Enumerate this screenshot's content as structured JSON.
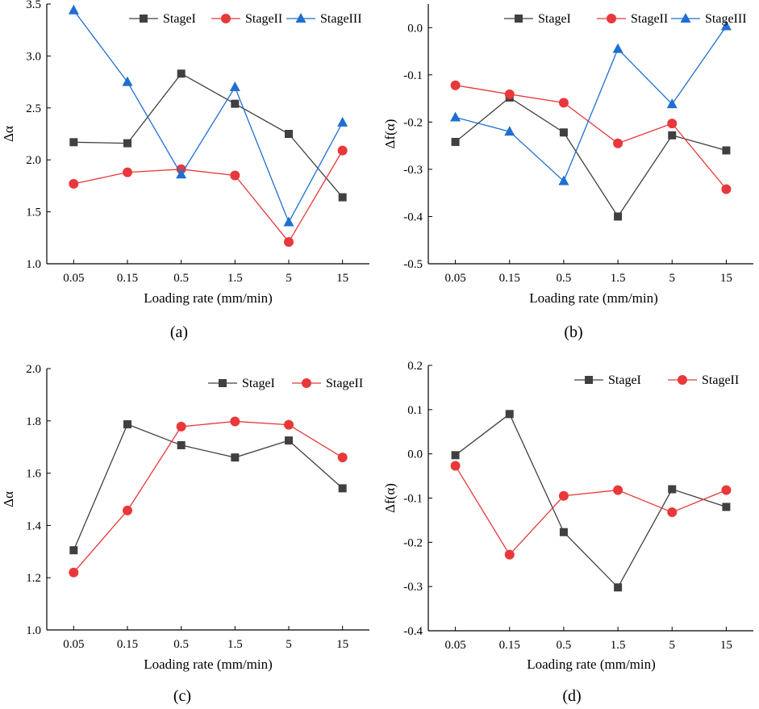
{
  "chart_data": [
    {
      "type": "line",
      "panel_label": "(a)",
      "categories": [
        "0.05",
        "0.15",
        "0.5",
        "1.5",
        "5",
        "15"
      ],
      "xlabel": "Loading rate (mm/min)",
      "ylabel": "Δα",
      "ylim": [
        1.0,
        3.5
      ],
      "yticks": [
        "1.0",
        "1.5",
        "2.0",
        "2.5",
        "3.0",
        "3.5"
      ],
      "legend_position": "top-right",
      "series": [
        {
          "name": "StageI",
          "color": "#404040",
          "marker": "square",
          "values": [
            2.17,
            2.16,
            2.83,
            2.54,
            2.25,
            1.64
          ]
        },
        {
          "name": "StageII",
          "color": "#e8383b",
          "marker": "circle",
          "values": [
            1.77,
            1.88,
            1.91,
            1.85,
            1.21,
            2.09
          ]
        },
        {
          "name": "StageIII",
          "color": "#1f6fd1",
          "marker": "triangle",
          "values": [
            3.44,
            2.75,
            1.86,
            2.7,
            1.4,
            2.36
          ]
        }
      ]
    },
    {
      "type": "line",
      "panel_label": "(b)",
      "categories": [
        "0.05",
        "0.15",
        "0.5",
        "1.5",
        "5",
        "15"
      ],
      "xlabel": "Loading rate (mm/min)",
      "ylabel": "Δf(α)",
      "ylim": [
        -0.5,
        0.05
      ],
      "yticks": [
        "-0.5",
        "-0.4",
        "-0.3",
        "-0.2",
        "-0.1",
        "0.0"
      ],
      "legend_position": "top-right",
      "series": [
        {
          "name": "StageI",
          "color": "#404040",
          "marker": "square",
          "values": [
            -0.242,
            -0.148,
            -0.222,
            -0.4,
            -0.228,
            -0.26
          ]
        },
        {
          "name": "StageII",
          "color": "#e8383b",
          "marker": "circle",
          "values": [
            -0.122,
            -0.141,
            -0.159,
            -0.245,
            -0.203,
            -0.342
          ]
        },
        {
          "name": "StageIII",
          "color": "#1f6fd1",
          "marker": "triangle",
          "values": [
            -0.19,
            -0.22,
            -0.325,
            -0.045,
            -0.162,
            0.003
          ]
        }
      ]
    },
    {
      "type": "line",
      "panel_label": "(c)",
      "categories": [
        "0.05",
        "0.15",
        "0.5",
        "1.5",
        "5",
        "15"
      ],
      "xlabel": "Loading rate (mm/min)",
      "ylabel": "Δα",
      "ylim": [
        1.0,
        2.0
      ],
      "yticks": [
        "1.0",
        "1.2",
        "1.4",
        "1.6",
        "1.8",
        "2.0"
      ],
      "legend_position": "top-right",
      "series": [
        {
          "name": "StageI",
          "color": "#404040",
          "marker": "square",
          "values": [
            1.305,
            1.787,
            1.707,
            1.66,
            1.725,
            1.542
          ]
        },
        {
          "name": "StageII",
          "color": "#e8383b",
          "marker": "circle",
          "values": [
            1.22,
            1.457,
            1.778,
            1.798,
            1.785,
            1.66
          ]
        }
      ]
    },
    {
      "type": "line",
      "panel_label": "(d)",
      "categories": [
        "0.05",
        "0.15",
        "0.5",
        "1.5",
        "5",
        "15"
      ],
      "xlabel": "Loading rate (mm/min)",
      "ylabel": "Δf(α)",
      "ylim": [
        -0.4,
        0.2
      ],
      "yticks": [
        "-0.4",
        "-0.3",
        "-0.2",
        "-0.1",
        "0.0",
        "0.1",
        "0.2"
      ],
      "legend_position": "top-right",
      "series": [
        {
          "name": "StageI",
          "color": "#404040",
          "marker": "square",
          "values": [
            -0.003,
            0.09,
            -0.177,
            -0.302,
            -0.08,
            -0.12
          ]
        },
        {
          "name": "StageII",
          "color": "#e8383b",
          "marker": "circle",
          "values": [
            -0.027,
            -0.228,
            -0.095,
            -0.082,
            -0.132,
            -0.082
          ]
        }
      ]
    }
  ]
}
